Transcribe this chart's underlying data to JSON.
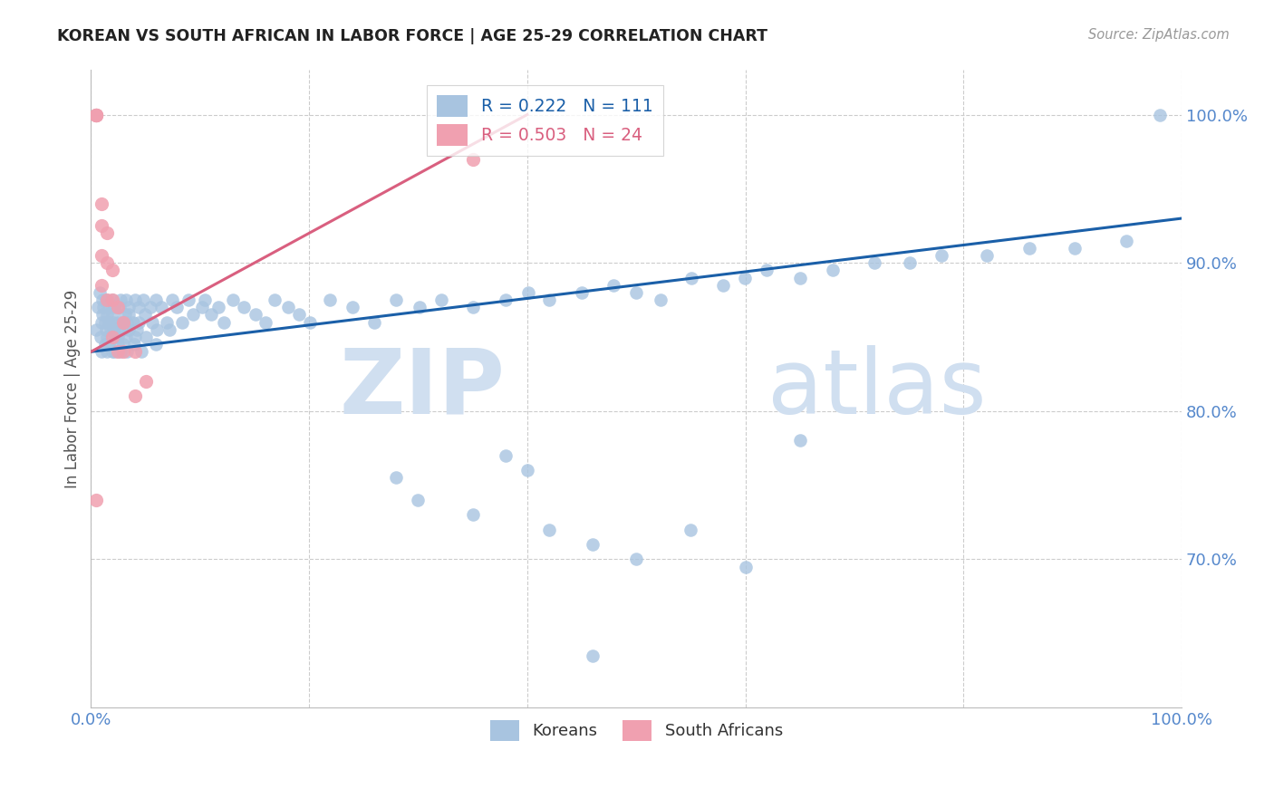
{
  "title": "KOREAN VS SOUTH AFRICAN IN LABOR FORCE | AGE 25-29 CORRELATION CHART",
  "source_text": "Source: ZipAtlas.com",
  "ylabel": "In Labor Force | Age 25-29",
  "xlim": [
    0.0,
    1.0
  ],
  "ylim": [
    0.6,
    1.03
  ],
  "yticks": [
    0.7,
    0.8,
    0.9,
    1.0
  ],
  "ytick_labels": [
    "70.0%",
    "80.0%",
    "90.0%",
    "100.0%"
  ],
  "xtick_labels": [
    "0.0%",
    "100.0%"
  ],
  "korean_R": 0.222,
  "korean_N": 111,
  "sa_R": 0.503,
  "sa_N": 24,
  "blue_color": "#a8c4e0",
  "pink_color": "#f0a0b0",
  "blue_line_color": "#1a5fa8",
  "pink_line_color": "#d95f7f",
  "axis_color": "#5588cc",
  "grid_color": "#cccccc",
  "watermark_color": "#d0dff0",
  "legend_blue_label": "Koreans",
  "legend_pink_label": "South Africans",
  "korean_x": [
    0.005,
    0.005,
    0.008,
    0.01,
    0.01,
    0.01,
    0.01,
    0.012,
    0.012,
    0.012,
    0.012,
    0.014,
    0.014,
    0.015,
    0.015,
    0.015,
    0.016,
    0.016,
    0.018,
    0.018,
    0.018,
    0.02,
    0.02,
    0.02,
    0.02,
    0.022,
    0.022,
    0.024,
    0.024,
    0.025,
    0.025,
    0.026,
    0.026,
    0.028,
    0.028,
    0.028,
    0.03,
    0.03,
    0.03,
    0.03,
    0.032,
    0.032,
    0.034,
    0.034,
    0.036,
    0.036,
    0.038,
    0.038,
    0.04,
    0.04,
    0.042,
    0.042,
    0.044,
    0.046,
    0.048,
    0.05,
    0.052,
    0.054,
    0.056,
    0.058,
    0.06,
    0.062,
    0.065,
    0.068,
    0.072,
    0.075,
    0.08,
    0.085,
    0.09,
    0.095,
    0.1,
    0.105,
    0.11,
    0.115,
    0.12,
    0.13,
    0.14,
    0.15,
    0.16,
    0.17,
    0.18,
    0.19,
    0.2,
    0.22,
    0.24,
    0.26,
    0.28,
    0.3,
    0.32,
    0.35,
    0.38,
    0.4,
    0.42,
    0.45,
    0.48,
    0.5,
    0.52,
    0.55,
    0.58,
    0.6,
    0.62,
    0.65,
    0.68,
    0.72,
    0.75,
    0.78,
    0.82,
    0.86,
    0.9,
    0.95,
    0.98
  ],
  "korean_y": [
    0.87,
    0.855,
    0.88,
    0.865,
    0.85,
    0.84,
    0.86,
    0.875,
    0.845,
    0.86,
    0.87,
    0.855,
    0.84,
    0.865,
    0.85,
    0.875,
    0.86,
    0.845,
    0.855,
    0.87,
    0.84,
    0.86,
    0.875,
    0.85,
    0.865,
    0.855,
    0.84,
    0.87,
    0.855,
    0.86,
    0.845,
    0.875,
    0.85,
    0.86,
    0.87,
    0.84,
    0.855,
    0.865,
    0.875,
    0.845,
    0.86,
    0.85,
    0.87,
    0.84,
    0.855,
    0.865,
    0.86,
    0.875,
    0.85,
    0.845,
    0.87,
    0.855,
    0.86,
    0.84,
    0.875,
    0.865,
    0.85,
    0.87,
    0.86,
    0.845,
    0.875,
    0.855,
    0.87,
    0.86,
    0.855,
    0.875,
    0.87,
    0.86,
    0.875,
    0.865,
    0.87,
    0.875,
    0.865,
    0.87,
    0.86,
    0.875,
    0.87,
    0.865,
    0.86,
    0.875,
    0.87,
    0.865,
    0.86,
    0.875,
    0.87,
    0.86,
    0.875,
    0.87,
    0.875,
    0.87,
    0.875,
    0.88,
    0.875,
    0.88,
    0.885,
    0.88,
    0.875,
    0.89,
    0.885,
    0.89,
    0.895,
    0.89,
    0.895,
    0.9,
    0.9,
    0.905,
    0.905,
    0.91,
    0.91,
    0.915,
    1.0
  ],
  "korean_y_outliers_x": [
    0.38,
    0.4,
    0.28,
    0.3,
    0.35,
    0.42,
    0.46,
    0.5,
    0.55,
    0.6,
    0.65,
    0.46
  ],
  "korean_y_outliers_y": [
    0.77,
    0.76,
    0.755,
    0.74,
    0.73,
    0.72,
    0.71,
    0.7,
    0.72,
    0.695,
    0.78,
    0.635
  ],
  "sa_x": [
    0.005,
    0.005,
    0.005,
    0.005,
    0.005,
    0.01,
    0.01,
    0.01,
    0.01,
    0.015,
    0.015,
    0.015,
    0.02,
    0.02,
    0.02,
    0.025,
    0.025,
    0.03,
    0.03,
    0.04,
    0.04,
    0.05,
    0.005,
    0.35
  ],
  "sa_y": [
    1.0,
    1.0,
    1.0,
    1.0,
    1.0,
    0.94,
    0.925,
    0.905,
    0.885,
    0.92,
    0.9,
    0.875,
    0.895,
    0.875,
    0.85,
    0.87,
    0.84,
    0.86,
    0.84,
    0.84,
    0.81,
    0.82,
    0.74,
    0.97
  ],
  "blue_line_x0": 0.0,
  "blue_line_y0": 0.84,
  "blue_line_x1": 1.0,
  "blue_line_y1": 0.93,
  "pink_line_x0": 0.0,
  "pink_line_y0": 0.84,
  "pink_line_x1": 0.4,
  "pink_line_y1": 1.0
}
